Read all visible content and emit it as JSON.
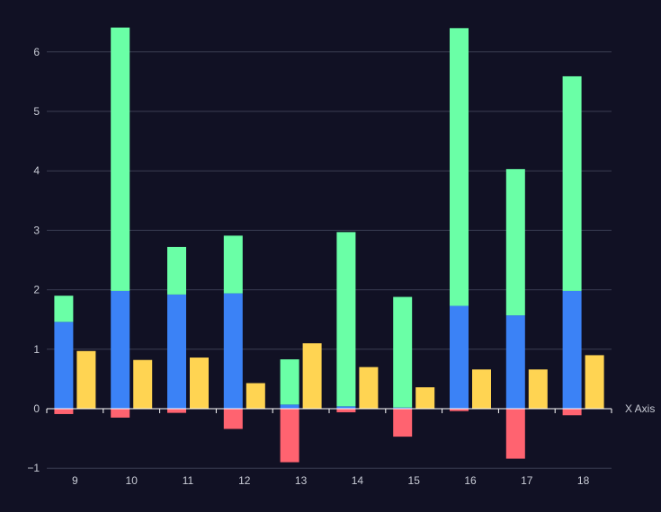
{
  "chart_data": {
    "type": "bar",
    "xlabel": "X Axis",
    "ylabel": "",
    "ylim": [
      -1,
      6.5
    ],
    "yticks": [
      -1,
      0,
      1,
      2,
      3,
      4,
      5,
      6
    ],
    "ytick_labels": [
      "−1",
      "0",
      "1",
      "2",
      "3",
      "4",
      "5",
      "6"
    ],
    "grid": true,
    "legend": "none",
    "categories": [
      "9",
      "10",
      "11",
      "12",
      "13",
      "14",
      "15",
      "16",
      "17",
      "18"
    ],
    "stacked_series": [
      {
        "color": "#3b82f6",
        "values": [
          1.46,
          1.98,
          1.92,
          1.94,
          0.07,
          0.04,
          0.02,
          1.73,
          1.57,
          1.98
        ]
      },
      {
        "color": "#6affa6",
        "values": [
          0.44,
          4.43,
          0.8,
          0.97,
          0.76,
          2.93,
          1.86,
          4.67,
          2.46,
          3.61
        ]
      },
      {
        "color": "#ff6370",
        "values": [
          -0.09,
          -0.15,
          -0.07,
          -0.34,
          -0.9,
          -0.06,
          -0.47,
          -0.04,
          -0.84,
          -0.11
        ]
      }
    ],
    "side_series": [
      {
        "color": "#ffd452",
        "values": [
          0.97,
          0.82,
          0.86,
          0.43,
          1.1,
          0.7,
          0.36,
          0.66,
          0.66,
          0.9
        ]
      }
    ],
    "colors": {
      "background": "#111124",
      "grid": "#3a3d52",
      "text": "#c9ccd6"
    }
  }
}
